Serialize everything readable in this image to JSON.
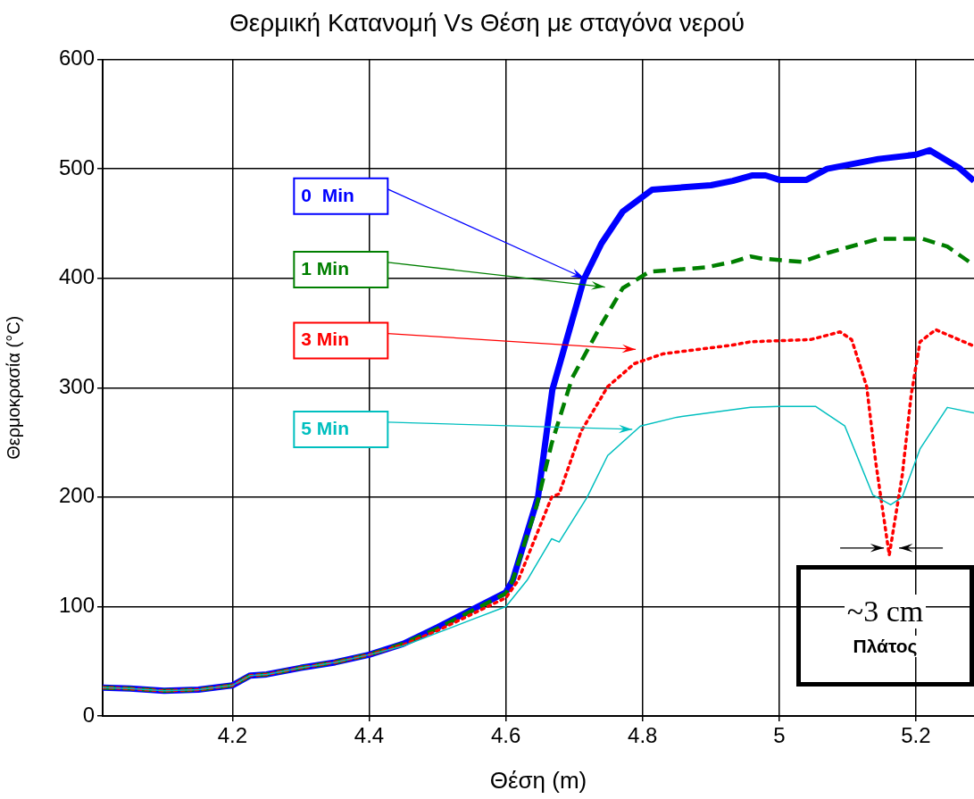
{
  "chart_data": {
    "type": "line",
    "title": "Θερμική Κατανομή Vs Θέση με σταγόνα νερού",
    "xlabel": "Θέση (m)",
    "ylabel": "Θερμοκρασία (°C)",
    "xlim": [
      4.01,
      5.285
    ],
    "xticks": [
      4.2,
      4.4,
      4.6,
      4.8,
      5,
      5.2
    ],
    "ylim": [
      0,
      600
    ],
    "yticks": [
      0,
      100,
      200,
      300,
      400,
      500,
      600
    ],
    "grid": true,
    "legend": false,
    "marker": "none",
    "series": [
      {
        "name": "0  Min",
        "color": "#0000ff",
        "line_style": "solid",
        "x": [
          4.01,
          4.05,
          4.1,
          4.15,
          4.2,
          4.226,
          4.25,
          4.3,
          4.35,
          4.4,
          4.45,
          4.5,
          4.55,
          4.6,
          4.61,
          4.647,
          4.668,
          4.714,
          4.74,
          4.771,
          4.814,
          4.9,
          4.932,
          4.96,
          4.98,
          5.0,
          5.04,
          5.07,
          5.145,
          5.2,
          5.22,
          5.263,
          5.285
        ],
        "values": [
          26,
          25,
          23,
          24,
          28,
          37,
          38,
          44,
          49,
          56,
          66,
          81,
          97,
          113,
          124,
          200,
          298,
          399,
          432,
          461,
          481,
          485,
          489,
          494,
          494,
          490,
          490,
          500,
          509,
          513,
          517,
          501,
          489
        ]
      },
      {
        "name": "1 Min",
        "color": "#007f00",
        "line_style": "dashed",
        "x": [
          4.01,
          4.05,
          4.1,
          4.15,
          4.2,
          4.226,
          4.25,
          4.3,
          4.35,
          4.4,
          4.45,
          4.5,
          4.55,
          4.6,
          4.61,
          4.645,
          4.667,
          4.697,
          4.74,
          4.771,
          4.81,
          4.893,
          4.932,
          4.958,
          4.975,
          5.033,
          5.07,
          5.145,
          5.21,
          5.246,
          5.285
        ],
        "values": [
          26,
          25,
          23,
          24,
          28,
          37,
          38,
          44,
          49,
          56,
          66,
          80,
          96,
          112,
          124,
          192,
          249,
          309,
          358,
          391,
          406,
          410,
          415,
          420,
          418,
          415,
          423,
          436,
          436,
          429,
          412
        ]
      },
      {
        "name": "3 Min",
        "color": "#ff0000",
        "line_style": "dotted",
        "x": [
          4.01,
          4.05,
          4.1,
          4.15,
          4.2,
          4.226,
          4.25,
          4.3,
          4.35,
          4.4,
          4.45,
          4.5,
          4.55,
          4.6,
          4.618,
          4.667,
          4.678,
          4.71,
          4.749,
          4.788,
          4.83,
          4.932,
          4.958,
          5.0,
          5.046,
          5.089,
          5.106,
          5.128,
          5.141,
          5.161,
          5.18,
          5.193,
          5.206,
          5.229,
          5.285
        ],
        "values": [
          26,
          25,
          23,
          24,
          28,
          37,
          38,
          44,
          49,
          56,
          65,
          78,
          93,
          108,
          124,
          200,
          203,
          260,
          301,
          322,
          331,
          339,
          342,
          343,
          344,
          351,
          344,
          301,
          233,
          147,
          220,
          293,
          342,
          353,
          338
        ]
      },
      {
        "name": "5 Min",
        "color": "#00bfbf",
        "line_style": "solid",
        "x": [
          4.01,
          4.05,
          4.1,
          4.15,
          4.2,
          4.226,
          4.25,
          4.3,
          4.35,
          4.4,
          4.45,
          4.5,
          4.55,
          4.6,
          4.631,
          4.667,
          4.678,
          4.719,
          4.749,
          4.797,
          4.85,
          4.958,
          5.0,
          5.053,
          5.096,
          5.137,
          5.163,
          5.18,
          5.206,
          5.246,
          5.285
        ],
        "values": [
          26,
          25,
          23,
          24,
          28,
          37,
          38,
          44,
          49,
          56,
          64,
          76,
          88,
          100,
          124,
          162,
          159,
          200,
          238,
          265,
          273,
          282,
          283,
          283,
          265,
          202,
          193,
          200,
          244,
          282,
          277
        ]
      }
    ],
    "annotations": [
      {
        "text": "~3 cm",
        "x": 5.161,
        "y": 147
      },
      "Πλάτος"
    ]
  }
}
